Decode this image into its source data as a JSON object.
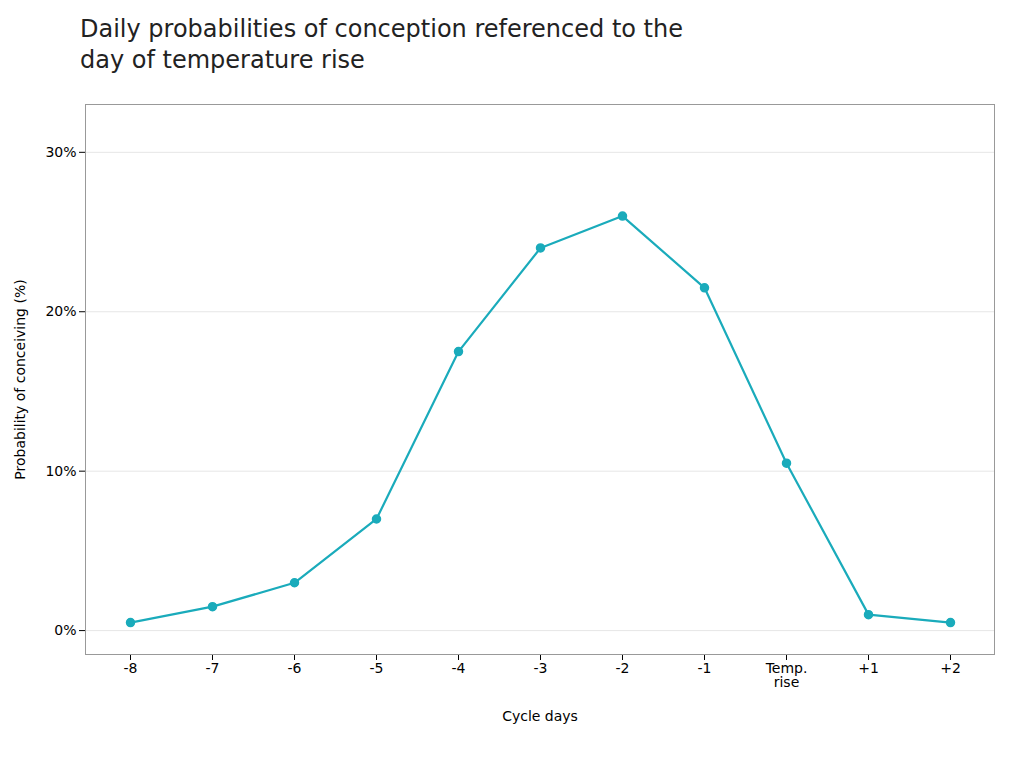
{
  "chart_data": {
    "type": "line",
    "title": "Daily probabilities of conception referenced to the\nday of temperature rise",
    "x_label": "Cycle days",
    "y_label": "Probability of conceiving (%)",
    "categories": [
      "-8",
      "-7",
      "-6",
      "-5",
      "-4",
      "-3",
      "-2",
      "-1",
      "Temp.\nrise",
      "+1",
      "+2"
    ],
    "values": [
      0.5,
      1.5,
      3.0,
      7.0,
      17.5,
      24.0,
      26.0,
      21.5,
      10.5,
      1.0,
      0.5
    ],
    "color": "#1AABBB",
    "marker": "circle",
    "ylim": [
      -1.5,
      33
    ],
    "yticks": [
      {
        "value": 0,
        "label": "0%"
      },
      {
        "value": 10,
        "label": "10%"
      },
      {
        "value": 20,
        "label": "20%"
      },
      {
        "value": 30,
        "label": "30%"
      }
    ],
    "grid": true
  }
}
